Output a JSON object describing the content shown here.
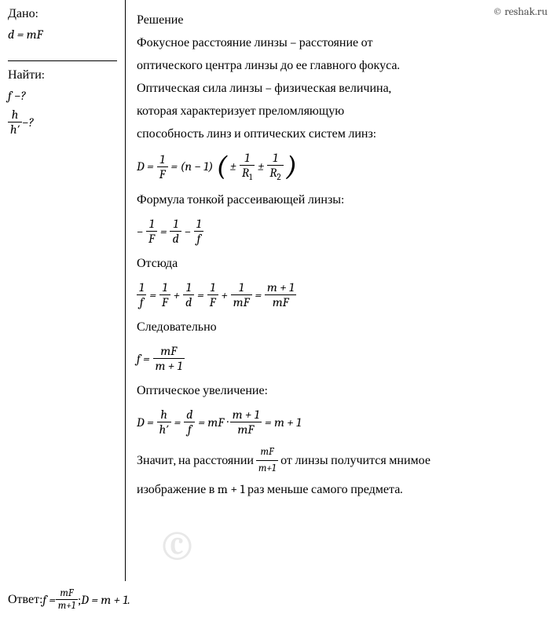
{
  "site_link": "© reshak.ru",
  "watermark": "©",
  "left": {
    "given_title": "Дано:",
    "given_formula": "d = mF",
    "find_title": "Найти:",
    "find_1_var": "f",
    "find_1_q": " −?",
    "find_2_num": "h",
    "find_2_den": "h′",
    "find_2_q": " −?"
  },
  "solution": {
    "title": "Решение",
    "p1": "Фокусное расстояние линзы – расстояние от",
    "p2": "оптического центра линзы до ее главного фокуса.",
    "p3": "Оптическая сила линзы – физическая величина,",
    "p4": "которая характеризует преломляющую",
    "p5": "способность линз и оптических систем линз:",
    "eq1_left": "D = ",
    "eq1_f1_num": "1",
    "eq1_f1_den": "F",
    "eq1_mid": " = (n − 1) ",
    "eq1_pm1": "±",
    "eq1_f2_num": "1",
    "eq1_f2_den_r": "R",
    "eq1_f2_den_1": "1",
    "eq1_pm2": " ± ",
    "eq1_f3_num": "1",
    "eq1_f3_den_r": "R",
    "eq1_f3_den_2": "2",
    "p6": "Формула тонкой рассеивающей линзы:",
    "eq2_neg": "−",
    "eq2_f1_num": "1",
    "eq2_f1_den": "F",
    "eq2_eq": " = ",
    "eq2_f2_num": "1",
    "eq2_f2_den": "d",
    "eq2_minus": " − ",
    "eq2_f3_num": "1",
    "eq2_f3_den": "f",
    "p7": "Отсюда",
    "eq3_f1_num": "1",
    "eq3_f1_den": "f",
    "eq3_eq1": " = ",
    "eq3_f2_num": "1",
    "eq3_f2_den": "F",
    "eq3_plus1": " + ",
    "eq3_f3_num": "1",
    "eq3_f3_den": "d",
    "eq3_eq2": " = ",
    "eq3_f4_num": "1",
    "eq3_f4_den": "F",
    "eq3_plus2": " + ",
    "eq3_f5_num": "1",
    "eq3_f5_den": "mF",
    "eq3_eq3": " = ",
    "eq3_f6_num": "m + 1",
    "eq3_f6_den": "mF",
    "p8": "Следовательно",
    "eq4_left": "f = ",
    "eq4_num": "mF",
    "eq4_den": "m + 1",
    "p9": "Оптическое увеличение:",
    "eq5_left": "D = ",
    "eq5_f1_num": "h",
    "eq5_f1_den": "h′",
    "eq5_eq1": " = ",
    "eq5_f2_num": "d",
    "eq5_f2_den": "f",
    "eq5_eq2": " = mF · ",
    "eq5_f3_num": "m + 1",
    "eq5_f3_den": "mF",
    "eq5_eq3": " = m + 1",
    "p10a": "Значит, на расстоянии ",
    "p10_num": "mF",
    "p10_den": "m+1",
    "p10b": " от линзы получится мнимое",
    "p11": "изображение в m + 1 раз меньше самого предмета."
  },
  "answer": {
    "label": "Ответ: ",
    "part1_left": "f = ",
    "part1_num": "mF",
    "part1_den": "m+1",
    "sep": " ; ",
    "part2": "D = m + 1."
  }
}
